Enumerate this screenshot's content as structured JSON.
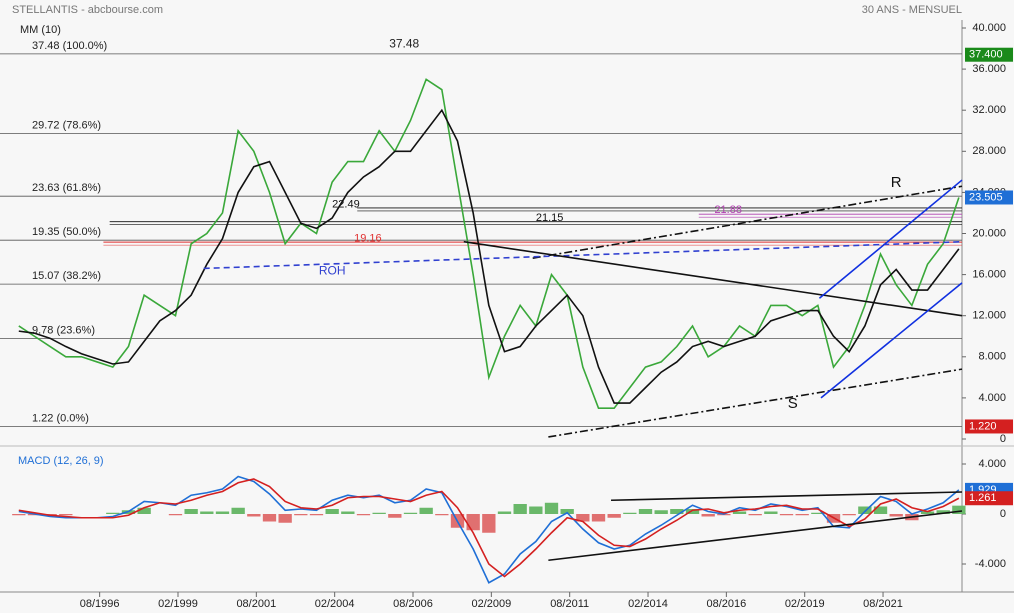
{
  "chart_data": [
    {
      "type": "line",
      "title": "STELLANTIS - abcbourse.com",
      "subtitle": "30 ANS - MENSUEL",
      "indicator": "MM (10)",
      "xlim": [
        1993.4,
        2024.1
      ],
      "ylim": [
        0,
        40
      ],
      "yticks": [
        0,
        {
          "value": 4,
          "label": "4.000"
        },
        {
          "value": 8,
          "label": "8.000"
        },
        {
          "value": 12,
          "label": "12.000"
        },
        {
          "value": 16,
          "label": "16.000"
        },
        {
          "value": 20,
          "label": "20.000"
        },
        {
          "value": 24,
          "label": "24.000"
        },
        {
          "value": 28,
          "label": "28.000"
        },
        {
          "value": 32,
          "label": "32.000"
        },
        {
          "value": 36,
          "label": "36.000"
        },
        {
          "value": 40,
          "label": "40.000"
        }
      ],
      "x": [
        1994,
        1994.5,
        1995,
        1995.5,
        1996,
        1996.5,
        1997,
        1997.5,
        1998,
        1998.5,
        1999,
        1999.5,
        2000,
        2000.5,
        2001,
        2001.5,
        2002,
        2002.5,
        2003,
        2003.5,
        2004,
        2004.5,
        2005,
        2005.5,
        2006,
        2006.5,
        2007,
        2007.5,
        2008,
        2008.5,
        2009,
        2009.5,
        2010,
        2010.5,
        2011,
        2011.5,
        2012,
        2012.5,
        2013,
        2013.5,
        2014,
        2014.5,
        2015,
        2015.5,
        2016,
        2016.5,
        2017,
        2017.5,
        2018,
        2018.5,
        2019,
        2019.5,
        2020,
        2020.5,
        2021,
        2021.5,
        2022,
        2022.5,
        2023,
        2023.5,
        2024
      ],
      "series": [
        {
          "color": "#3aa83a",
          "values": [
            11,
            10,
            9,
            8,
            8,
            7.5,
            7,
            9,
            14,
            13,
            12,
            19,
            20,
            22,
            30,
            28,
            24,
            19,
            21,
            20,
            25,
            27,
            27,
            30,
            28,
            31,
            35,
            34,
            25,
            16,
            6,
            10,
            13,
            11,
            16,
            14,
            7,
            3,
            3,
            5,
            7,
            7.5,
            9,
            11,
            8,
            9,
            11,
            10,
            13,
            13,
            12,
            13,
            7,
            9,
            13,
            18,
            15,
            13,
            17,
            19,
            23.505
          ]
        },
        {
          "color": "#111111",
          "values": [
            10.5,
            10.3,
            9.8,
            9,
            8.3,
            7.8,
            7.3,
            7.5,
            9.5,
            11.5,
            12.5,
            14,
            17,
            19.5,
            24,
            26.5,
            27,
            24,
            21,
            20.5,
            21.5,
            24,
            25.5,
            26.5,
            28,
            28,
            30,
            32,
            29,
            22,
            13,
            8.5,
            9,
            11,
            12.5,
            14,
            12,
            7,
            3.5,
            3.5,
            5,
            6.5,
            7.5,
            9,
            9.5,
            9,
            9.5,
            10,
            11.5,
            12,
            12.5,
            12.5,
            10,
            8.5,
            11,
            15,
            16.5,
            14.5,
            14.5,
            16.5,
            18.5
          ]
        }
      ],
      "levels": [
        {
          "value": 37.48,
          "label": "37.48  (100.0%)"
        },
        {
          "value": 29.72,
          "label": "29.72  (78.6%)"
        },
        {
          "value": 23.63,
          "label": "23.63  (61.8%)"
        },
        {
          "value": 19.35,
          "label": "19.35  (50.0%)"
        },
        {
          "value": 15.07,
          "label": "15.07  (38.2%)"
        },
        {
          "value": 9.78,
          "label": "9.78  (23.6%)"
        },
        {
          "value": 1.22,
          "label": "1.22  (0.0%)"
        }
      ],
      "hlines": [
        {
          "value": 22.49,
          "from": 2004.8,
          "color": "#111111",
          "label": "22.49",
          "lx": 2004.0,
          "ly": 22.8
        },
        {
          "value": 21.15,
          "from": 1996.9,
          "color": "#111111",
          "label": "21.15",
          "lx": 2010.5,
          "ly": 21.5
        },
        {
          "value": 21.88,
          "from": 2015.7,
          "color": "#b040b0",
          "label": "21.88",
          "lx": 2016.2,
          "ly": 22.3
        },
        {
          "value": 19.16,
          "from": 1996.7,
          "color": "#e03030",
          "label": "19.16",
          "lx": 2004.7,
          "ly": 19.5
        }
      ],
      "trendlines": [
        {
          "color": "#111111",
          "style": "dashdot",
          "points": [
            [
              2010.4,
              17.6
            ],
            [
              2024.1,
              24.6
            ]
          ]
        },
        {
          "color": "#3040d0",
          "style": "dashed",
          "points": [
            [
              1999.9,
              16.6
            ],
            [
              2024.1,
              19.2
            ]
          ]
        },
        {
          "color": "#111111",
          "style": "solid",
          "points": [
            [
              2008.2,
              19.2
            ],
            [
              2024.1,
              12.0
            ]
          ]
        },
        {
          "color": "#111111",
          "style": "dashdot",
          "points": [
            [
              2010.9,
              0.2
            ],
            [
              2024.1,
              6.8
            ]
          ]
        },
        {
          "color": "#1030e0",
          "style": "solid",
          "points": [
            [
              2019.55,
              13.7
            ],
            [
              2024.1,
              25.2
            ]
          ]
        },
        {
          "color": "#1030e0",
          "style": "solid",
          "points": [
            [
              2019.6,
              4.0
            ],
            [
              2024.1,
              15.2
            ]
          ]
        }
      ],
      "annotations": [
        {
          "text": "37.48",
          "x": 2006.3,
          "y": 38.4,
          "color": "#222222"
        },
        {
          "text": "R",
          "x": 2022.0,
          "y": 24.9,
          "color": "#111111"
        },
        {
          "text": "S",
          "x": 2018.7,
          "y": 3.4,
          "color": "#111111"
        },
        {
          "text": "ROH",
          "x": 2004.0,
          "y": 16.3,
          "color": "#3040d0"
        }
      ],
      "price_tags": [
        {
          "value": 37.4,
          "label": "37.400",
          "color": "#1a8a1a"
        },
        {
          "value": 23.505,
          "label": "23.505",
          "color": "#1f6fd6"
        },
        {
          "value": 1.22,
          "label": "1.220",
          "color": "#d42020"
        }
      ]
    },
    {
      "type": "macd",
      "title": "MACD (12, 26, 9)",
      "xlim": [
        1993.4,
        2024.1
      ],
      "ylim": [
        -6,
        5
      ],
      "yticks": [
        {
          "value": -4,
          "label": "-4.000"
        },
        0,
        {
          "value": 4,
          "label": "4.000"
        }
      ],
      "xticks": [
        {
          "value": 1996.58,
          "label": "08/1996"
        },
        {
          "value": 1999.08,
          "label": "02/1999"
        },
        {
          "value": 2001.58,
          "label": "08/2001"
        },
        {
          "value": 2004.08,
          "label": "02/2004"
        },
        {
          "value": 2006.58,
          "label": "08/2006"
        },
        {
          "value": 2009.08,
          "label": "02/2009"
        },
        {
          "value": 2011.58,
          "label": "08/2011"
        },
        {
          "value": 2014.08,
          "label": "02/2014"
        },
        {
          "value": 2016.58,
          "label": "08/2016"
        },
        {
          "value": 2019.08,
          "label": "02/2019"
        },
        {
          "value": 2021.58,
          "label": "08/2021"
        }
      ],
      "x": [
        1994,
        1994.5,
        1995,
        1995.5,
        1996,
        1996.5,
        1997,
        1997.5,
        1998,
        1998.5,
        1999,
        1999.5,
        2000,
        2000.5,
        2001,
        2001.5,
        2002,
        2002.5,
        2003,
        2003.5,
        2004,
        2004.5,
        2005,
        2005.5,
        2006,
        2006.5,
        2007,
        2007.5,
        2008,
        2008.5,
        2009,
        2009.5,
        2010,
        2010.5,
        2011,
        2011.5,
        2012,
        2012.5,
        2013,
        2013.5,
        2014,
        2014.5,
        2015,
        2015.5,
        2016,
        2016.5,
        2017,
        2017.5,
        2018,
        2018.5,
        2019,
        2019.5,
        2020,
        2020.5,
        2021,
        2021.5,
        2022,
        2022.5,
        2023,
        2023.5,
        2024
      ],
      "series": [
        {
          "color": "#1f6fd6",
          "values": [
            0.2,
            0,
            -0.2,
            -0.3,
            -0.3,
            -0.3,
            -0.2,
            0.2,
            1.0,
            0.9,
            0.7,
            1.5,
            1.7,
            2.0,
            3.0,
            2.6,
            1.6,
            0.3,
            0.4,
            0.3,
            1.1,
            1.5,
            1.3,
            1.5,
            0.9,
            1.1,
            2.0,
            1.7,
            -0.6,
            -2.8,
            -5.5,
            -4.8,
            -3.2,
            -2.2,
            -0.6,
            0.1,
            -1.2,
            -2.3,
            -2.8,
            -2.5,
            -1.6,
            -0.9,
            -0.1,
            0.7,
            0.2,
            0.0,
            0.5,
            0.3,
            0.8,
            0.6,
            0.3,
            0.5,
            -1.0,
            -1.1,
            0.2,
            1.4,
            1.0,
            0.0,
            0.4,
            0.9,
            1.929
          ]
        },
        {
          "color": "#d42020",
          "values": [
            0.3,
            0.1,
            -0.1,
            -0.2,
            -0.3,
            -0.3,
            -0.3,
            -0.1,
            0.5,
            0.9,
            0.8,
            1.1,
            1.5,
            1.8,
            2.5,
            2.8,
            2.2,
            1.0,
            0.5,
            0.4,
            0.7,
            1.3,
            1.4,
            1.4,
            1.2,
            1.0,
            1.5,
            1.8,
            0.5,
            -1.5,
            -4.0,
            -5.0,
            -4.0,
            -2.8,
            -1.5,
            -0.3,
            -0.6,
            -1.7,
            -2.5,
            -2.6,
            -2.0,
            -1.2,
            -0.5,
            0.3,
            0.4,
            0.1,
            0.3,
            0.4,
            0.6,
            0.7,
            0.4,
            0.4,
            -0.3,
            -1.0,
            -0.4,
            0.8,
            1.2,
            0.5,
            0.2,
            0.6,
            1.261
          ]
        }
      ],
      "histogram": {
        "up_color": "#6ab86a",
        "down_color": "#e07070",
        "values": [
          -0.1,
          -0.1,
          -0.1,
          -0.1,
          0,
          0,
          0.1,
          0.3,
          0.5,
          0,
          -0.1,
          0.4,
          0.2,
          0.2,
          0.5,
          -0.2,
          -0.6,
          -0.7,
          -0.1,
          -0.1,
          0.4,
          0.2,
          -0.1,
          0.1,
          -0.3,
          0.1,
          0.5,
          -0.1,
          -1.1,
          -1.3,
          -1.5,
          0.2,
          0.8,
          0.6,
          0.9,
          0.4,
          -0.6,
          -0.6,
          -0.3,
          0.1,
          0.4,
          0.3,
          0.4,
          0.4,
          -0.2,
          -0.1,
          0.2,
          -0.1,
          0.2,
          -0.1,
          -0.1,
          0.1,
          -0.7,
          -0.1,
          0.6,
          0.6,
          -0.2,
          -0.5,
          0.2,
          0.3,
          0.668
        ]
      },
      "trendlines": [
        {
          "color": "#111111",
          "style": "solid",
          "points": [
            [
              2012.9,
              1.1
            ],
            [
              2024.1,
              1.76
            ]
          ]
        },
        {
          "color": "#111111",
          "style": "solid",
          "points": [
            [
              2010.9,
              -3.7
            ],
            [
              2024.1,
              0.24
            ]
          ]
        }
      ],
      "price_tags": [
        {
          "value": 1.929,
          "label": "1.929",
          "color": "#1f6fd6"
        },
        {
          "value": 1.261,
          "label": "1.261",
          "color": "#d42020"
        }
      ]
    }
  ]
}
